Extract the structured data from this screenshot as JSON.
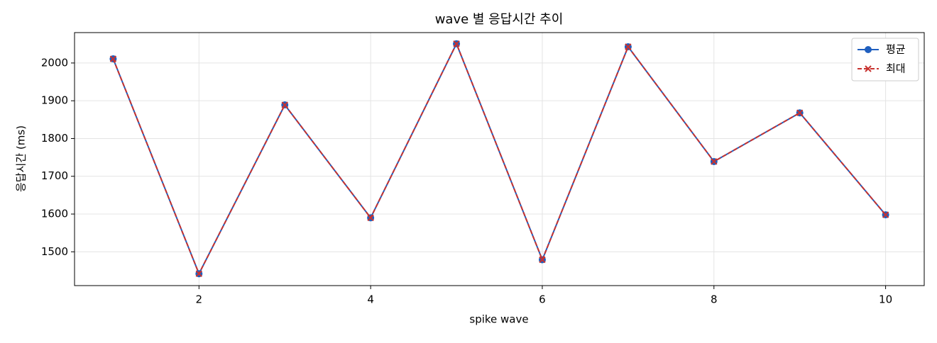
{
  "chart_data": {
    "type": "line",
    "title": "wave 별 응답시간 추이",
    "xlabel": "spike wave",
    "ylabel": "응답시간 (ms)",
    "x": [
      1,
      2,
      3,
      4,
      5,
      6,
      7,
      8,
      9,
      10
    ],
    "series": [
      {
        "name": "평균",
        "color": "#1f5fbf",
        "marker": "o",
        "dash": false,
        "values": [
          2011,
          1442,
          1889,
          1590,
          2051,
          1479,
          2043,
          1739,
          1868,
          1598
        ]
      },
      {
        "name": "최대",
        "color": "#c8322f",
        "marker": "x",
        "dash": true,
        "values": [
          2011,
          1442,
          1889,
          1590,
          2051,
          1479,
          2043,
          1739,
          1868,
          1598
        ]
      }
    ],
    "xlim": [
      0.55,
      10.45
    ],
    "xticks": [
      2,
      4,
      6,
      8,
      10
    ],
    "ylim": [
      1410.5,
      2080.5
    ],
    "yticks": [
      1500,
      1600,
      1700,
      1800,
      1900,
      2000
    ],
    "grid": true,
    "legend": "upper right"
  }
}
